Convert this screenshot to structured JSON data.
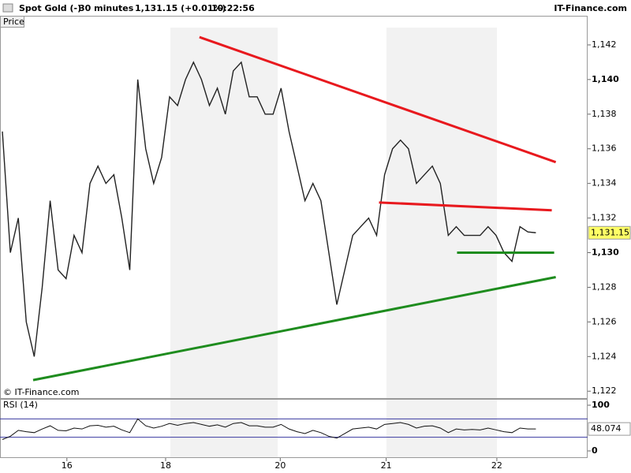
{
  "header": {
    "instrument": "Spot Gold (-)",
    "interval": "30 minutes",
    "quote": "1,131.15 (+0.01%)",
    "time": "10:22:56",
    "site": "IT-Finance.com"
  },
  "chart_data": [
    {
      "type": "line",
      "panel_label": "Price",
      "watermark": "© IT-Finance.com",
      "color": "#222222",
      "values": [
        1137,
        1130,
        1132,
        1126,
        1124,
        1128,
        1133,
        1129,
        1128.5,
        1131,
        1130,
        1134,
        1135,
        1134,
        1134.5,
        1132,
        1129,
        1140,
        1136,
        1134,
        1135.5,
        1139,
        1138.5,
        1140,
        1141,
        1140,
        1138.5,
        1139.5,
        1138,
        1140.5,
        1141,
        1139,
        1139,
        1138,
        1138,
        1139.5,
        1137,
        1135,
        1133,
        1134,
        1133,
        1130,
        1127,
        1129,
        1131,
        1131.5,
        1132,
        1131,
        1134.5,
        1136,
        1136.5,
        1136,
        1134,
        1134.5,
        1135,
        1134,
        1131,
        1131.5,
        1131,
        1131,
        1131,
        1131.5,
        1131,
        1130,
        1129.5,
        1131.5,
        1131.2,
        1131.15
      ],
      "xlim": [
        -0.3,
        73.5
      ],
      "xticks": [
        {
          "value": 8.1,
          "label": "16"
        },
        {
          "value": 20.5,
          "label": "18"
        },
        {
          "value": 34.9,
          "label": "20"
        },
        {
          "value": 48.2,
          "label": "21"
        },
        {
          "value": 62.1,
          "label": "22"
        }
      ],
      "ylim": [
        1121.6,
        1143
      ],
      "yticks": [
        {
          "value": 1122,
          "label": "1,122"
        },
        {
          "value": 1124,
          "label": "1,124"
        },
        {
          "value": 1126,
          "label": "1,126"
        },
        {
          "value": 1128,
          "label": "1,128"
        },
        {
          "value": 1130,
          "label": "1,130"
        },
        {
          "value": 1132,
          "label": "1,132"
        },
        {
          "value": 1134,
          "label": "1,134"
        },
        {
          "value": 1136,
          "label": "1,136"
        },
        {
          "value": 1138,
          "label": "1,138"
        },
        {
          "value": 1140,
          "label": "1,140"
        },
        {
          "value": 1142,
          "label": "1,142"
        }
      ],
      "last_label": {
        "value": 1131.15,
        "label": "1,131.15"
      },
      "trendlines": [
        {
          "color": "#e8191e",
          "x": [
            24.75,
            69.5
          ],
          "y": [
            1142.45,
            1135.23
          ]
        },
        {
          "color": "#e8191e",
          "x": [
            47.3,
            69
          ],
          "y": [
            1132.9,
            1132.45
          ]
        },
        {
          "color": "#1e8c1e",
          "x": [
            3.86,
            69.5
          ],
          "y": [
            1122.64,
            1128.59
          ]
        },
        {
          "color": "#1e8c1e",
          "x": [
            57.1,
            69.3
          ],
          "y": [
            1130,
            1130
          ]
        }
      ]
    },
    {
      "type": "line",
      "panel_label": "RSI (14)",
      "color": "#111111",
      "values": [
        25,
        32,
        45,
        42,
        40,
        48,
        55,
        45,
        44,
        50,
        48,
        55,
        56,
        52,
        54,
        46,
        40,
        70,
        55,
        50,
        54,
        60,
        56,
        60,
        62,
        58,
        54,
        57,
        52,
        60,
        62,
        55,
        55,
        52,
        52,
        58,
        48,
        42,
        38,
        45,
        40,
        32,
        28,
        38,
        48,
        50,
        52,
        48,
        58,
        60,
        62,
        58,
        50,
        54,
        55,
        50,
        40,
        48,
        46,
        47,
        46,
        50,
        46,
        42,
        40,
        50,
        48,
        48.074
      ],
      "xlim": [
        -0.3,
        73.5
      ],
      "ylim": [
        0,
        100
      ],
      "yticks": [
        0,
        100
      ],
      "bands": [
        30,
        70
      ],
      "last_label": 48.074
    }
  ]
}
